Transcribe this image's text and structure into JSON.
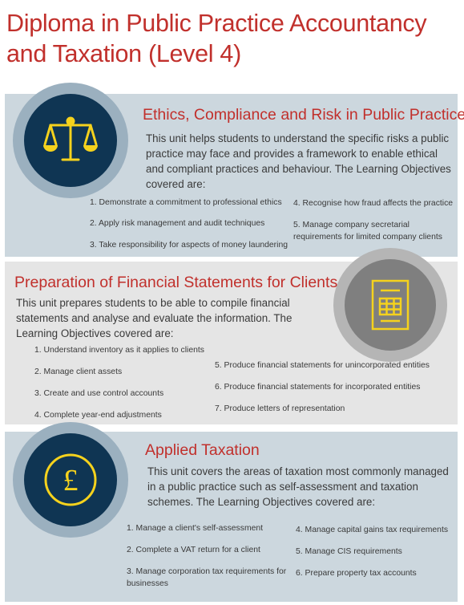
{
  "title": "Diploma in Public Practice Accountancy and Taxation (Level 4)",
  "colors": {
    "accent_red": "#c1302c",
    "navy": "#0f3553",
    "gold": "#f5d21d",
    "blue_panel": "#ccd7de",
    "gray_panel": "#e5e5e5"
  },
  "units": [
    {
      "icon": "scales-icon",
      "heading": "Ethics, Compliance and Risk in Public Practice",
      "description": "This unit helps students to understand the specific risks a public practice may face and provides a framework to enable ethical and compliant practices and behaviour. The Learning Objectives covered are:",
      "objectives": [
        "1. Demonstrate a commitment to professional ethics",
        "2. Apply risk management and audit techniques",
        "3. Take responsibility for aspects of money laundering",
        "4. Recognise how fraud affects the practice",
        "5. Manage company secretarial requirements for limited company clients"
      ]
    },
    {
      "icon": "financial-statement-icon",
      "heading": "Preparation of Financial Statements for Clients",
      "description": "This unit prepares students to be able to compile financial statements and analyse and evaluate the information. The Learning Objectives covered are:",
      "objectives": [
        "1. Understand inventory as it applies to clients",
        "2. Manage client assets",
        "3. Create and use control accounts",
        "4. Complete year-end adjustments",
        "5. Produce financial statements for unincorporated entities",
        "6. Produce financial statements for incorporated entities",
        "7. Produce letters of representation"
      ]
    },
    {
      "icon": "pound-icon",
      "heading": "Applied Taxation",
      "description": "This unit covers the areas of taxation most commonly managed in a public practice such as self-assessment and taxation schemes. The Learning Objectives covered are:",
      "objectives": [
        "1. Manage a client's self-assessment",
        "2. Complete a VAT return for a client",
        "3. Manage corporation tax requirements for businesses",
        "4. Manage capital gains tax requirements",
        "5. Manage CIS requirements",
        "6. Prepare property tax accounts"
      ]
    }
  ]
}
